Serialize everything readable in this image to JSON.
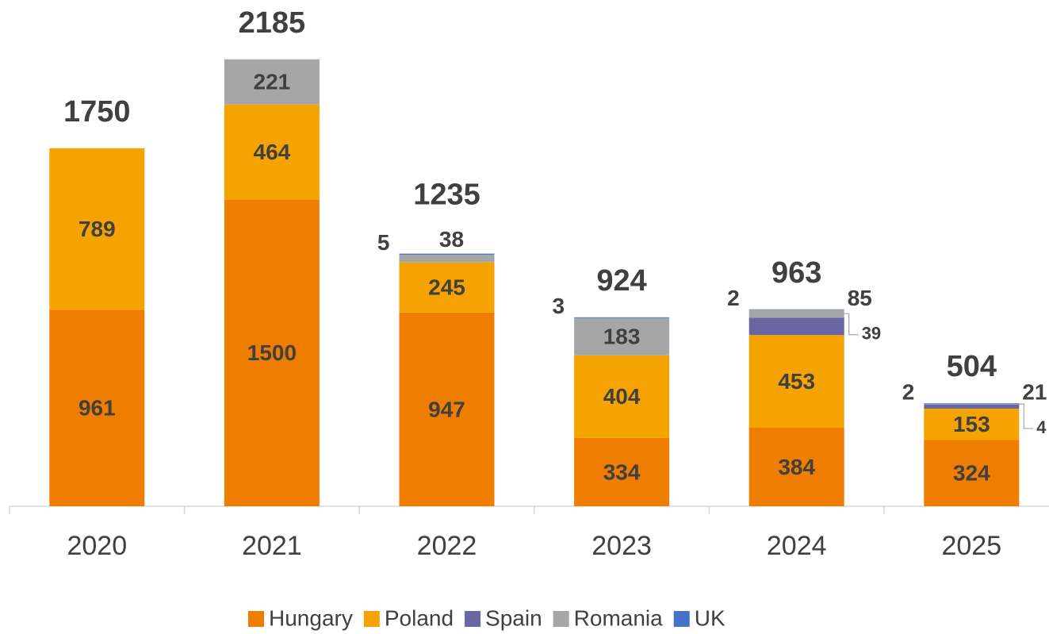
{
  "chart_data": {
    "type": "stacked_bar",
    "categories": [
      "2020",
      "2021",
      "2022",
      "2023",
      "2024",
      "2025"
    ],
    "series": [
      {
        "name": "Hungary",
        "color": "#ef7d00",
        "values": [
          961,
          1500,
          947,
          334,
          384,
          324
        ]
      },
      {
        "name": "Poland",
        "color": "#f5a300",
        "values": [
          789,
          464,
          245,
          404,
          453,
          153
        ]
      },
      {
        "name": "Spain",
        "color": "#6a66a3",
        "values": [
          null,
          null,
          null,
          null,
          85,
          21
        ]
      },
      {
        "name": "Romania",
        "color": "#a6a6a6",
        "values": [
          null,
          221,
          38,
          183,
          39,
          4
        ]
      },
      {
        "name": "UK",
        "color": "#4472c4",
        "values": [
          null,
          null,
          5,
          3,
          2,
          2
        ]
      }
    ],
    "totals": [
      1750,
      2185,
      1235,
      924,
      963,
      504
    ],
    "ylim": [
      0,
      2475
    ],
    "legend": "bottom"
  }
}
